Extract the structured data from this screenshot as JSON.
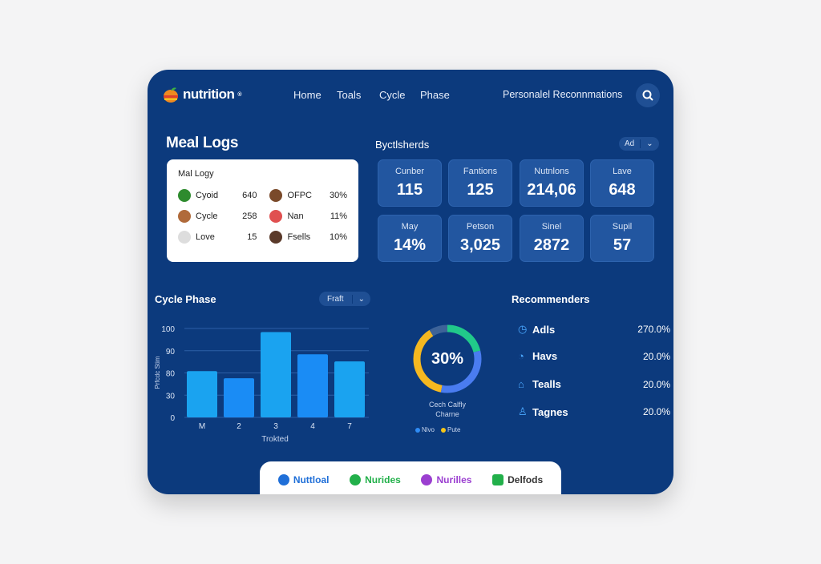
{
  "header": {
    "logo": "nutrition",
    "nav": [
      "Home",
      "Toals",
      "Cycle",
      "Phase"
    ],
    "personal": "Personalel Reconnmations"
  },
  "meal_logs": {
    "title": "Meal Logs",
    "card_title": "Mal Logy",
    "rows": [
      {
        "label": "Cyoid",
        "value": "640",
        "label2": "OFPC",
        "value2": "30%",
        "icon": "leaf-icon",
        "color": "#2e8b2e",
        "avatar": "#7a4a2a"
      },
      {
        "label": "Cycle",
        "value": "258",
        "label2": "Nan",
        "value2": "11%",
        "icon": "planet-icon",
        "color": "#b06a3a",
        "avatar": "#e05050"
      },
      {
        "label": "Love",
        "value": "15",
        "label2": "Fsells",
        "value2": "10%",
        "icon": "bird-icon",
        "color": "#dddddd",
        "avatar": "#5a3a2a"
      }
    ]
  },
  "stats": {
    "title": "Byctlsherds",
    "dropdown": "Ad",
    "tiles": [
      {
        "label": "Cunber",
        "value": "115"
      },
      {
        "label": "Fantions",
        "value": "125"
      },
      {
        "label": "Nutnlons",
        "value": "214,06"
      },
      {
        "label": "Lave",
        "value": "648"
      },
      {
        "label": "May",
        "value": "14%"
      },
      {
        "label": "Petson",
        "value": "3,025"
      },
      {
        "label": "Sinel",
        "value": "2872"
      },
      {
        "label": "Supil",
        "value": "57"
      }
    ]
  },
  "cycle": {
    "title": "Cycle Phase",
    "dropdown": "Fraft"
  },
  "chart_data": {
    "type": "bar",
    "categories": [
      "M",
      "2",
      "3",
      "4",
      "7"
    ],
    "values": [
      52,
      44,
      96,
      71,
      63
    ],
    "ytick_labels": [
      "0",
      "30",
      "80",
      "90",
      "100"
    ],
    "ylim": [
      0,
      100
    ],
    "xlabel": "Trokted",
    "ylabel": "Prfcdc Stim",
    "grid": true,
    "colors": [
      "#1aa3f0",
      "#1a8cf5",
      "#1aa3f0",
      "#1a8cf5",
      "#1aa3f0"
    ]
  },
  "donut": {
    "center": "30%",
    "caption1": "Cech Calfly",
    "caption2": "Charne",
    "segments": [
      {
        "value": 21,
        "color": "#21c98a"
      },
      {
        "value": 32,
        "color": "#4a7cf0"
      },
      {
        "value": 38,
        "color": "#f5b820"
      },
      {
        "value": 9,
        "color": "#3d6399"
      }
    ],
    "legend": [
      {
        "label": "Nlvo",
        "color": "#2f8cf5"
      },
      {
        "label": "Pute",
        "color": "#f5c518"
      }
    ]
  },
  "recommenders": {
    "title": "Recommenders",
    "items": [
      {
        "icon": "clock-icon",
        "glyph": "◷",
        "label": "Adls",
        "value": "270.0%"
      },
      {
        "icon": "timer-icon",
        "glyph": "◔",
        "label": "Havs",
        "value": "20.0%"
      },
      {
        "icon": "home-icon",
        "glyph": "⌂",
        "label": "Tealls",
        "value": "20.0%"
      },
      {
        "icon": "user-icon",
        "glyph": "♙",
        "label": "Tagnes",
        "value": "20.0%"
      }
    ]
  },
  "tabs": [
    {
      "label": "Nuttloal",
      "color": "#1f6fd8"
    },
    {
      "label": "Nurides",
      "color": "#22b04a"
    },
    {
      "label": "Nurilles",
      "color": "#9b3fd0"
    },
    {
      "label": "Delfods",
      "color": "#333333",
      "icon_color": "#22b04a"
    }
  ]
}
